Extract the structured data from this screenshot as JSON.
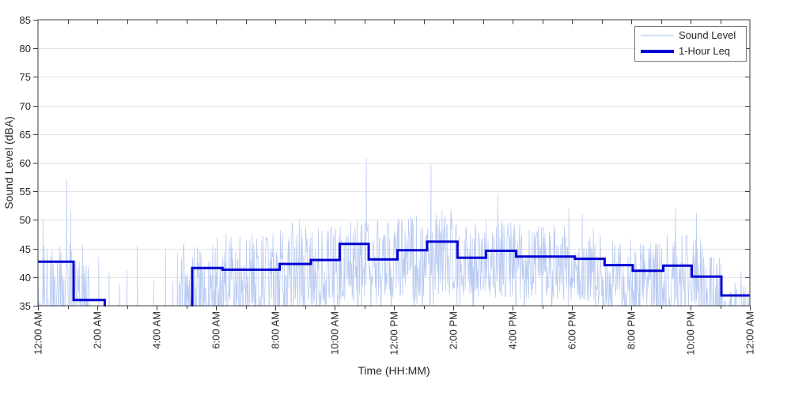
{
  "figure": {
    "background": "#ffffff",
    "axes_color": "#3c3c3c",
    "grid_color": "#e4e4e4",
    "tick_label_color": "#262626",
    "legend_border_color": "#757575"
  },
  "chart_data": {
    "type": "line",
    "title": "",
    "xlabel": "Time (HH:MM)",
    "ylabel": "Sound Level (dBA)",
    "x_unit": "hours since 12:00 AM",
    "xlim": [
      0,
      24
    ],
    "ylim": [
      35,
      85
    ],
    "yticks": [
      35,
      40,
      45,
      50,
      55,
      60,
      65,
      70,
      75,
      80,
      85
    ],
    "xticks": [
      {
        "hour": 0,
        "label": "12:00 AM"
      },
      {
        "hour": 2,
        "label": "2:00 AM"
      },
      {
        "hour": 4,
        "label": "4:00 AM"
      },
      {
        "hour": 6,
        "label": "6:00 AM"
      },
      {
        "hour": 8,
        "label": "8:00 AM"
      },
      {
        "hour": 10,
        "label": "10:00 AM"
      },
      {
        "hour": 12,
        "label": "12:00 PM"
      },
      {
        "hour": 14,
        "label": "2:00 PM"
      },
      {
        "hour": 16,
        "label": "4:00 PM"
      },
      {
        "hour": 18,
        "label": "6:00 PM"
      },
      {
        "hour": 20,
        "label": "8:00 PM"
      },
      {
        "hour": 22,
        "label": "10:00 PM"
      },
      {
        "hour": 24,
        "label": "12:00 AM"
      }
    ],
    "minor_x_tick_every_hours": 1,
    "grid": "horizontal",
    "legend_position": "top-right",
    "series": [
      {
        "name": "Sound Level",
        "type": "noisy-line",
        "color": "#b7c9f2",
        "line_width": 0.75,
        "description": "High-rate sound level samples (approx. 1-minute). Values below 35 dBA fall below the axis and are clipped. Envelope segments are [start_hour, end_hour, min_dBA, max_dBA, points_per_hour].",
        "envelope_segments": [
          [
            0.0,
            1.3,
            30.5,
            46.5,
            60
          ],
          [
            1.3,
            1.75,
            30.0,
            44.0,
            60
          ],
          [
            1.75,
            4.75,
            27.0,
            34.0,
            60
          ],
          [
            4.75,
            6.0,
            31.0,
            46.0,
            60
          ],
          [
            6.0,
            8.0,
            32.0,
            48.0,
            60
          ],
          [
            8.0,
            9.0,
            33.0,
            50.0,
            60
          ],
          [
            9.0,
            10.0,
            35.0,
            49.0,
            60
          ],
          [
            10.0,
            11.0,
            36.0,
            50.0,
            60
          ],
          [
            11.0,
            13.0,
            36.5,
            51.0,
            60
          ],
          [
            13.0,
            14.0,
            37.0,
            52.0,
            60
          ],
          [
            14.0,
            16.0,
            36.5,
            50.0,
            60
          ],
          [
            16.0,
            19.0,
            36.0,
            49.5,
            60
          ],
          [
            19.0,
            21.0,
            34.5,
            47.0,
            60
          ],
          [
            21.0,
            22.5,
            32.5,
            47.5,
            60
          ],
          [
            22.5,
            23.1,
            31.0,
            44.0,
            60
          ],
          [
            23.1,
            24.0,
            31.5,
            38.5,
            60
          ]
        ],
        "peak_events": [
          [
            0.17,
            50.1
          ],
          [
            0.97,
            57.1
          ],
          [
            1.1,
            51.4
          ],
          [
            1.5,
            45.8
          ],
          [
            2.05,
            43.5
          ],
          [
            2.4,
            40.8
          ],
          [
            2.75,
            38.8
          ],
          [
            3.0,
            41.2
          ],
          [
            3.35,
            45.5
          ],
          [
            3.9,
            39.5
          ],
          [
            4.3,
            45.0
          ],
          [
            4.55,
            39.3
          ],
          [
            4.7,
            44.3
          ],
          [
            11.07,
            60.8
          ],
          [
            13.25,
            59.7
          ],
          [
            15.5,
            54.4
          ],
          [
            17.9,
            52.0
          ],
          [
            18.35,
            51.0
          ],
          [
            21.5,
            52.1
          ],
          [
            22.2,
            51.2
          ],
          [
            23.5,
            39.0
          ],
          [
            23.7,
            41.0
          ]
        ]
      },
      {
        "name": "1-Hour Leq",
        "type": "step",
        "color": "#0000d2",
        "line_width": 3,
        "description": "Hourly equivalent continuous sound level. Segments are [start_hour, end_hour, dBA]; null means the hourly Leq fell below the 35 dBA axis limit (no line visible between about 2:15 AM and 5:10 AM).",
        "segments": [
          [
            0.0,
            1.2,
            42.7
          ],
          [
            1.2,
            2.25,
            36.0
          ],
          [
            2.25,
            5.2,
            null
          ],
          [
            5.2,
            6.22,
            41.6
          ],
          [
            6.22,
            7.2,
            41.3
          ],
          [
            7.2,
            8.15,
            41.3
          ],
          [
            8.15,
            9.2,
            42.3
          ],
          [
            9.2,
            10.17,
            43.0
          ],
          [
            10.17,
            11.15,
            45.8
          ],
          [
            11.15,
            12.12,
            43.1
          ],
          [
            12.12,
            13.12,
            44.7
          ],
          [
            13.12,
            14.14,
            46.2
          ],
          [
            14.14,
            15.1,
            43.4
          ],
          [
            15.1,
            16.12,
            44.6
          ],
          [
            16.12,
            17.1,
            43.6
          ],
          [
            17.1,
            18.1,
            43.6
          ],
          [
            18.1,
            19.1,
            43.2
          ],
          [
            19.1,
            20.05,
            42.1
          ],
          [
            20.05,
            21.08,
            41.1
          ],
          [
            21.08,
            22.04,
            42.0
          ],
          [
            22.04,
            23.04,
            40.1
          ],
          [
            23.04,
            24.0,
            36.8
          ]
        ]
      }
    ]
  }
}
